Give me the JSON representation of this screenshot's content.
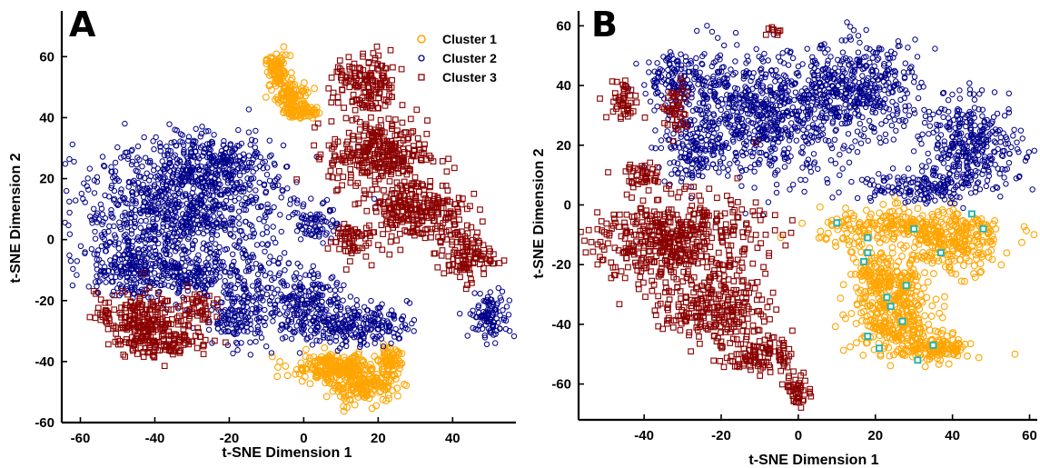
{
  "colors": {
    "cluster1": "#ffa500",
    "cluster2": "#00008b",
    "cluster3": "#8b0000",
    "highlight": "#20b2aa"
  },
  "chart_data": [
    {
      "type": "scatter",
      "panel_label": "A",
      "title": "",
      "xlabel": "t-SNE Dimension 1",
      "ylabel": "t-SNE Dimension 2",
      "xlim": [
        -65,
        57
      ],
      "ylim": [
        -60,
        75
      ],
      "xticks": [
        -60,
        -40,
        -20,
        0,
        20,
        40
      ],
      "yticks": [
        -60,
        -40,
        -20,
        0,
        20,
        40,
        60
      ],
      "grid": false,
      "legend": {
        "placement": "top-right",
        "entries": [
          "Cluster 1",
          "Cluster 2",
          "Cluster 3"
        ]
      },
      "series": [
        {
          "name": "Cluster 1",
          "marker": "circle",
          "color": "#ffa500",
          "regions": [
            {
              "cx": -7,
              "cy": 55,
              "rx": 3,
              "ry": 5,
              "n": 90
            },
            {
              "cx": -3,
              "cy": 47,
              "rx": 4,
              "ry": 4,
              "n": 90
            },
            {
              "cx": -1,
              "cy": 42,
              "rx": 4,
              "ry": 2,
              "n": 70
            },
            {
              "cx": 8,
              "cy": -42,
              "rx": 11,
              "ry": 4,
              "n": 220
            },
            {
              "cx": 16,
              "cy": -48,
              "rx": 8,
              "ry": 5,
              "n": 180
            },
            {
              "cx": 23,
              "cy": -40,
              "rx": 3,
              "ry": 4,
              "n": 60
            }
          ]
        },
        {
          "name": "Cluster 2",
          "marker": "hexagram",
          "color": "#00008b",
          "regions": [
            {
              "cx": -32,
              "cy": 10,
              "rx": 26,
              "ry": 18,
              "n": 900
            },
            {
              "cx": -25,
              "cy": 25,
              "rx": 15,
              "ry": 8,
              "n": 250
            },
            {
              "cx": -48,
              "cy": -8,
              "rx": 10,
              "ry": 10,
              "n": 160
            },
            {
              "cx": -30,
              "cy": -12,
              "rx": 20,
              "ry": 7,
              "n": 260
            },
            {
              "cx": -18,
              "cy": -25,
              "rx": 8,
              "ry": 10,
              "n": 150
            },
            {
              "cx": 0,
              "cy": -22,
              "rx": 12,
              "ry": 10,
              "n": 260
            },
            {
              "cx": 15,
              "cy": -28,
              "rx": 12,
              "ry": 6,
              "n": 200
            },
            {
              "cx": 4,
              "cy": 6,
              "rx": 5,
              "ry": 6,
              "n": 70
            },
            {
              "cx": 50,
              "cy": -25,
              "rx": 5,
              "ry": 7,
              "n": 110
            }
          ]
        },
        {
          "name": "Cluster 3",
          "marker": "square",
          "color": "#8b0000",
          "regions": [
            {
              "cx": 17,
              "cy": 50,
              "rx": 8,
              "ry": 10,
              "n": 160
            },
            {
              "cx": 20,
              "cy": 28,
              "rx": 12,
              "ry": 10,
              "n": 300
            },
            {
              "cx": 30,
              "cy": 10,
              "rx": 12,
              "ry": 9,
              "n": 260
            },
            {
              "cx": 43,
              "cy": -5,
              "rx": 7,
              "ry": 8,
              "n": 120
            },
            {
              "cx": 12,
              "cy": 0,
              "rx": 5,
              "ry": 6,
              "n": 60
            },
            {
              "cx": -45,
              "cy": -25,
              "rx": 10,
              "ry": 7,
              "n": 160
            },
            {
              "cx": -38,
              "cy": -33,
              "rx": 12,
              "ry": 5,
              "n": 150
            },
            {
              "cx": -30,
              "cy": -22,
              "rx": 5,
              "ry": 5,
              "n": 50
            }
          ]
        }
      ]
    },
    {
      "type": "scatter",
      "panel_label": "B",
      "title": "",
      "xlabel": "t-SNE Dimension 1",
      "ylabel": "t-SNE Dimension 2",
      "xlim": [
        -57,
        62
      ],
      "ylim": [
        -72,
        65
      ],
      "xticks": [
        -40,
        -20,
        0,
        20,
        40,
        60
      ],
      "yticks": [
        -60,
        -40,
        -20,
        0,
        20,
        40,
        60
      ],
      "grid": false,
      "legend": null,
      "series": [
        {
          "name": "Cluster 1",
          "marker": "circle",
          "color": "#ffa500",
          "regions": [
            {
              "cx": 30,
              "cy": -8,
              "rx": 22,
              "ry": 6,
              "n": 300
            },
            {
              "cx": 20,
              "cy": -25,
              "rx": 6,
              "ry": 10,
              "n": 150
            },
            {
              "cx": 25,
              "cy": -40,
              "rx": 10,
              "ry": 8,
              "n": 200
            },
            {
              "cx": 35,
              "cy": -48,
              "rx": 9,
              "ry": 4,
              "n": 150
            },
            {
              "cx": 40,
              "cy": -15,
              "rx": 10,
              "ry": 8,
              "n": 150
            },
            {
              "cx": 28,
              "cy": -28,
              "rx": 4,
              "ry": 8,
              "n": 80
            }
          ]
        },
        {
          "name": "Cluster 2",
          "marker": "hexagram",
          "color": "#00008b",
          "regions": [
            {
              "cx": -30,
              "cy": 42,
              "rx": 10,
              "ry": 8,
              "n": 160
            },
            {
              "cx": -10,
              "cy": 30,
              "rx": 20,
              "ry": 18,
              "n": 700
            },
            {
              "cx": 15,
              "cy": 38,
              "rx": 15,
              "ry": 15,
              "n": 450
            },
            {
              "cx": 45,
              "cy": 20,
              "rx": 12,
              "ry": 13,
              "n": 340
            },
            {
              "cx": -28,
              "cy": 18,
              "rx": 7,
              "ry": 10,
              "n": 120
            },
            {
              "cx": 30,
              "cy": 6,
              "rx": 15,
              "ry": 5,
              "n": 150
            }
          ]
        },
        {
          "name": "Cluster 3",
          "marker": "square",
          "color": "#8b0000",
          "regions": [
            {
              "cx": -32,
              "cy": -12,
              "rx": 20,
              "ry": 14,
              "n": 520
            },
            {
              "cx": -22,
              "cy": -35,
              "rx": 12,
              "ry": 10,
              "n": 240
            },
            {
              "cx": -10,
              "cy": -50,
              "rx": 8,
              "ry": 6,
              "n": 110
            },
            {
              "cx": 0,
              "cy": -62,
              "rx": 3,
              "ry": 5,
              "n": 50
            },
            {
              "cx": -45,
              "cy": 35,
              "rx": 4,
              "ry": 6,
              "n": 50
            },
            {
              "cx": -32,
              "cy": 32,
              "rx": 3,
              "ry": 8,
              "n": 50
            },
            {
              "cx": -40,
              "cy": 10,
              "rx": 4,
              "ry": 4,
              "n": 40
            },
            {
              "cx": -6,
              "cy": 58,
              "rx": 2,
              "ry": 2,
              "n": 10
            }
          ]
        }
      ],
      "highlighted_points": {
        "marker": "square",
        "color": "#20b2aa",
        "points": [
          [
            10,
            -6
          ],
          [
            18,
            -11
          ],
          [
            18,
            -16
          ],
          [
            17,
            -19
          ],
          [
            23,
            -31
          ],
          [
            24,
            -34
          ],
          [
            27,
            -39
          ],
          [
            28,
            -27
          ],
          [
            30,
            -8
          ],
          [
            35,
            -47
          ],
          [
            37,
            -16
          ],
          [
            45,
            -3
          ],
          [
            48,
            -8
          ],
          [
            18,
            -44
          ],
          [
            21,
            -48
          ],
          [
            31,
            -52
          ]
        ]
      }
    }
  ]
}
